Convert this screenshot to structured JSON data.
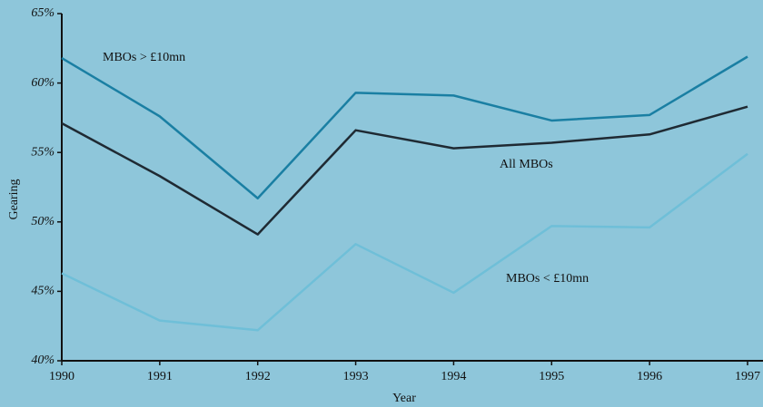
{
  "chart_data": {
    "type": "line",
    "x": [
      1990,
      1991,
      1992,
      1993,
      1994,
      1995,
      1996,
      1997
    ],
    "xlim": [
      1990,
      1997
    ],
    "xticks": [
      1990,
      1991,
      1992,
      1993,
      1994,
      1995,
      1996,
      1997
    ],
    "ylim": [
      40,
      65
    ],
    "yticks": [
      {
        "value": 40,
        "label": "40%"
      },
      {
        "value": 45,
        "label": "45%"
      },
      {
        "value": 50,
        "label": "50%"
      },
      {
        "value": 55,
        "label": "55%"
      },
      {
        "value": 60,
        "label": "60%"
      },
      {
        "value": 65,
        "label": "65%"
      }
    ],
    "x_label": "Year",
    "y_label": "Gearing",
    "grid": false,
    "series": [
      {
        "name": "MBOs > £10mn",
        "color": "#1a7fa3",
        "values": [
          61.8,
          57.6,
          51.7,
          59.3,
          59.1,
          57.3,
          57.7,
          61.9
        ]
      },
      {
        "name": "All MBOs",
        "color": "#1f2a33",
        "values": [
          57.1,
          53.3,
          49.1,
          56.6,
          55.3,
          55.7,
          56.3,
          58.3
        ]
      },
      {
        "name": "MBOs < £10mn",
        "color": "#6fbfd8",
        "values": [
          46.3,
          42.9,
          42.2,
          48.4,
          44.9,
          49.7,
          49.6,
          54.9
        ]
      }
    ]
  }
}
